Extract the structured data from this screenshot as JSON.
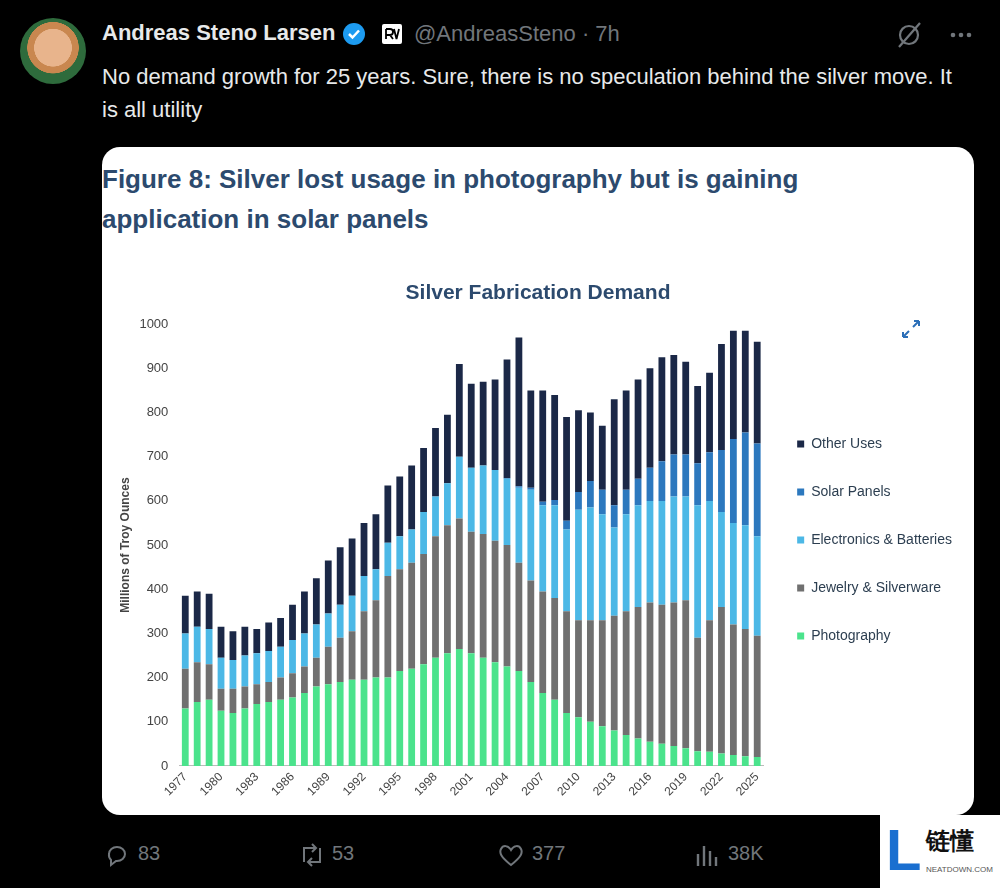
{
  "tweet": {
    "author": "Andreas Steno Larsen",
    "handle_time": "@AndreasSteno · 7h",
    "text": "No demand growth for 25 years. Sure, there is no speculation behind the silver move. It is all utility",
    "replies": 83,
    "reposts": 53,
    "likes": 377,
    "views": "38K"
  },
  "figure_title": "Figure 8: Silver lost usage in photography but is gaining application in solar panels",
  "chart_data": {
    "type": "bar",
    "title": "Silver Fabrication Demand",
    "y_label": "Millions of Troy Ounces",
    "categories": [
      "1977",
      null,
      null,
      "1980",
      null,
      null,
      "1983",
      null,
      null,
      "1986",
      null,
      null,
      "1989",
      null,
      null,
      "1992",
      null,
      null,
      "1995",
      null,
      null,
      "1998",
      null,
      null,
      "2001",
      null,
      null,
      "2004",
      null,
      null,
      "2007",
      null,
      null,
      "2010",
      null,
      null,
      "2013",
      null,
      null,
      "2016",
      null,
      null,
      "2019",
      null,
      null,
      "2022",
      null,
      null,
      "2025"
    ],
    "series": [
      {
        "name": "Photography",
        "color": "#4be38c",
        "values": [
          130,
          145,
          150,
          125,
          120,
          130,
          140,
          145,
          150,
          155,
          165,
          180,
          185,
          190,
          195,
          195,
          200,
          200,
          215,
          220,
          230,
          245,
          255,
          265,
          255,
          245,
          235,
          225,
          215,
          190,
          165,
          150,
          120,
          110,
          100,
          90,
          80,
          70,
          62,
          55,
          50,
          45,
          40,
          33,
          32,
          28,
          25,
          22,
          20
        ]
      },
      {
        "name": "Jewelry & Silverware",
        "color": "#707070",
        "values": [
          90,
          90,
          80,
          50,
          55,
          50,
          45,
          45,
          50,
          55,
          60,
          65,
          85,
          100,
          110,
          155,
          175,
          230,
          230,
          240,
          250,
          275,
          290,
          295,
          275,
          280,
          275,
          275,
          245,
          230,
          230,
          230,
          230,
          220,
          230,
          240,
          260,
          280,
          298,
          315,
          315,
          325,
          335,
          257,
          298,
          332,
          295,
          288,
          275
        ]
      },
      {
        "name": "Electronics & Batteries",
        "color": "#4cb8e6",
        "values": [
          80,
          80,
          80,
          70,
          65,
          70,
          70,
          70,
          70,
          75,
          75,
          75,
          75,
          75,
          80,
          80,
          70,
          75,
          75,
          75,
          95,
          90,
          95,
          140,
          145,
          155,
          160,
          150,
          170,
          205,
          195,
          210,
          185,
          250,
          255,
          240,
          200,
          220,
          230,
          230,
          235,
          240,
          235,
          300,
          270,
          215,
          230,
          235,
          225
        ]
      },
      {
        "name": "Solar Panels",
        "color": "#2c78be",
        "values": [
          0,
          0,
          0,
          0,
          0,
          0,
          0,
          0,
          0,
          0,
          0,
          0,
          0,
          0,
          0,
          0,
          0,
          0,
          0,
          0,
          0,
          0,
          0,
          0,
          0,
          0,
          0,
          2,
          3,
          5,
          8,
          12,
          20,
          40,
          60,
          55,
          50,
          55,
          60,
          75,
          90,
          95,
          95,
          95,
          110,
          140,
          190,
          210,
          210
        ]
      },
      {
        "name": "Other Uses",
        "color": "#1b2847",
        "values": [
          85,
          80,
          80,
          70,
          65,
          65,
          55,
          65,
          65,
          80,
          95,
          105,
          120,
          130,
          130,
          120,
          125,
          130,
          135,
          145,
          145,
          155,
          155,
          210,
          190,
          190,
          205,
          268,
          337,
          220,
          252,
          238,
          235,
          185,
          155,
          145,
          240,
          225,
          225,
          225,
          235,
          225,
          210,
          175,
          180,
          240,
          245,
          230,
          230
        ]
      }
    ],
    "stacked": true,
    "ylim": [
      0,
      1000
    ],
    "yticks": [
      0,
      100,
      200,
      300,
      400,
      500,
      600,
      700,
      800,
      900,
      1000
    ],
    "grid": false,
    "legend": "right"
  },
  "watermark": {
    "logo": "L",
    "text": "链懂",
    "site": "NEATDOWN.COM"
  }
}
